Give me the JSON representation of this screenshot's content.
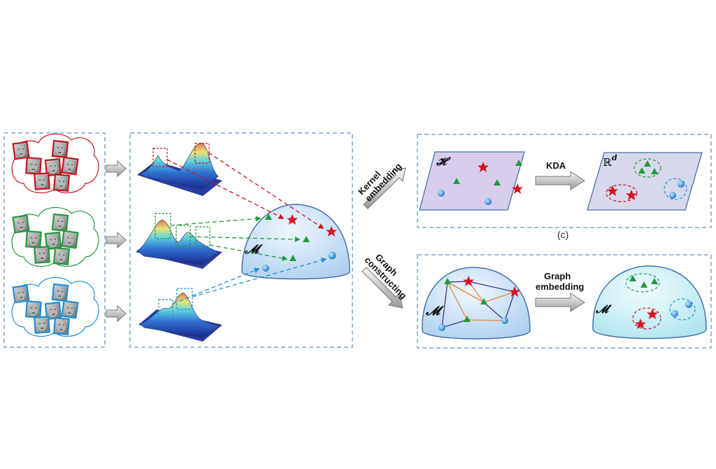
{
  "labels": {
    "manifold_main": "𝓜",
    "manifold_graph": "𝓜",
    "manifold_embedded": "𝓜′",
    "hilbert": "𝓗",
    "euclidean_base": "ℝ",
    "euclidean_exp": "d",
    "kda": "KDA",
    "kernel_line1": "Kernel",
    "kernel_line2": "embedding",
    "graph_line1": "Graph",
    "graph_line2": "constructing",
    "graph_emb_line1": "Graph",
    "graph_emb_line2": "embedding",
    "caption_c": "(c)"
  },
  "colors": {
    "panel_border": "#9dbbd9",
    "red": "#c8141c",
    "green": "#1f9a3a",
    "blue": "#1d8fd6",
    "star": "#d6141c",
    "triangle": "#1f9a3a",
    "dot": "#2b9be0",
    "plane_hilbert": "#d9cdee",
    "plane_rd": "#d8d8ec",
    "dome": "#c9e1f6",
    "dome_embedded": "#c6eef4",
    "graph_edge_orange": "#e9853b",
    "graph_edge_purple": "#3a3a8a"
  },
  "icons": [
    "face-thumbnail",
    "star-icon",
    "triangle-icon",
    "dot-icon",
    "gray-block-arrow",
    "surface-plot"
  ]
}
